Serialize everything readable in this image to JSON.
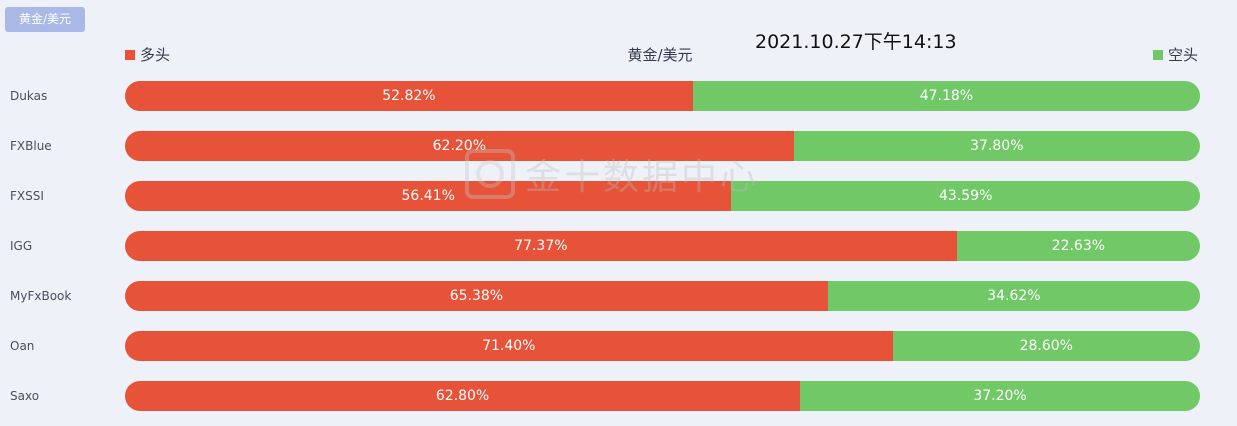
{
  "header": {
    "tag_label": "黄金/美元",
    "timestamp": "2021.10.27下午14:13",
    "center_title": "黄金/美元",
    "legend_long": "多头",
    "legend_short": "空头",
    "watermark": "金十数据中心"
  },
  "colors": {
    "long": "#e65339",
    "short": "#70c866",
    "tag_bg": "#a9b8e6",
    "background": "#eef1f8"
  },
  "chart_data": {
    "type": "bar",
    "stacked": true,
    "orientation": "horizontal",
    "title": "黄金/美元",
    "categories": [
      "Dukas",
      "FXBlue",
      "FXSSI",
      "IGG",
      "MyFxBook",
      "Oan",
      "Saxo"
    ],
    "series": [
      {
        "name": "多头",
        "values": [
          52.82,
          62.2,
          56.41,
          77.37,
          65.38,
          71.4,
          62.8
        ]
      },
      {
        "name": "空头",
        "values": [
          47.18,
          37.8,
          43.59,
          22.63,
          34.62,
          28.6,
          37.2
        ]
      }
    ],
    "value_labels": {
      "多头": [
        "52.82%",
        "62.20%",
        "56.41%",
        "77.37%",
        "65.38%",
        "71.40%",
        "62.80%"
      ],
      "空头": [
        "47.18%",
        "37.80%",
        "43.59%",
        "22.63%",
        "34.62%",
        "28.60%",
        "37.20%"
      ]
    },
    "xlim": [
      0,
      100
    ],
    "legend_position": "top",
    "grid": false
  }
}
